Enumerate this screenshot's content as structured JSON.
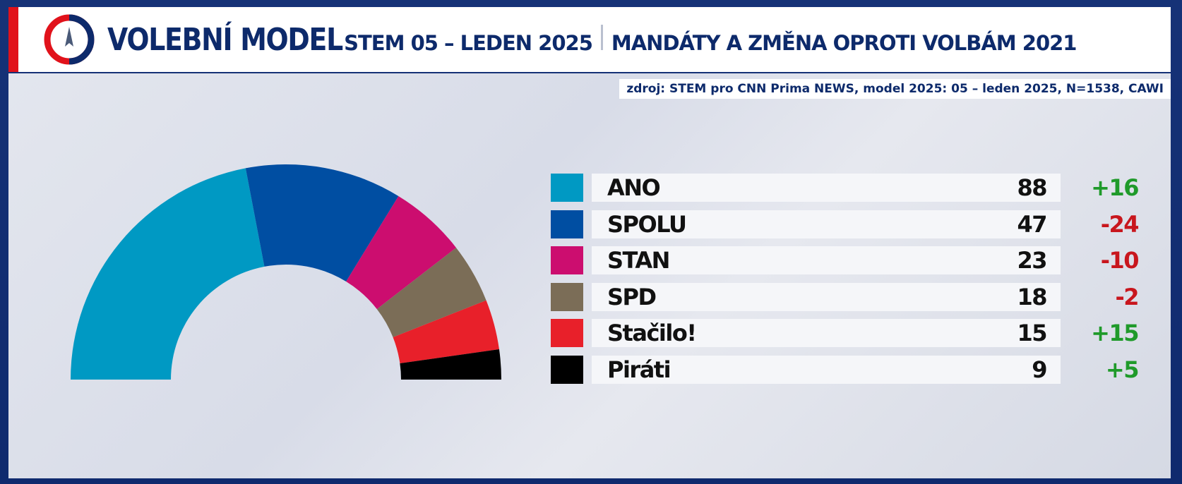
{
  "header": {
    "title_main": "VOLEBNÍ MODEL",
    "title_sub1": "STEM 05 – LEDEN 2025",
    "title_sub2": "MANDÁTY A ZMĚNA OPROTI VOLBÁM 2021"
  },
  "source_text": "zdroj: STEM pro CNN Prima NEWS, model 2025: 05 – leden 2025, N=1538, CAWI",
  "colors": {
    "accent_red": "#e1121b",
    "navy": "#0d2a6b",
    "positive": "#1f9a2a",
    "negative": "#c8161d"
  },
  "chart_data": {
    "type": "pie",
    "subtype": "half-donut (parliament seats)",
    "total": 200,
    "series": [
      {
        "name": "ANO",
        "value": 88,
        "change": "+16",
        "color": "#0099c3"
      },
      {
        "name": "SPOLU",
        "value": 47,
        "change": "-24",
        "color": "#004ea2"
      },
      {
        "name": "STAN",
        "value": 23,
        "change": "-10",
        "color": "#cc0d6f"
      },
      {
        "name": "SPD",
        "value": 18,
        "change": "-2",
        "color": "#7b6d57"
      },
      {
        "name": "Stačilo!",
        "value": 15,
        "change": "+15",
        "color": "#e8202a"
      },
      {
        "name": "Piráti",
        "value": 9,
        "change": "+5",
        "color": "#000000"
      }
    ]
  }
}
